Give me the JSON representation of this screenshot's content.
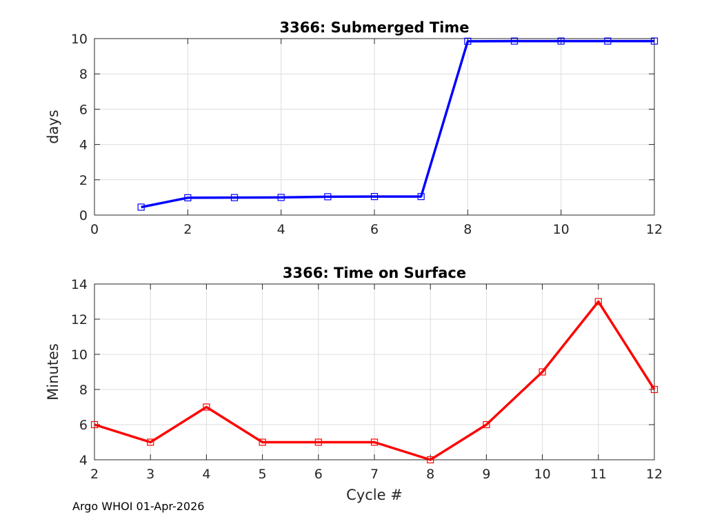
{
  "footer_text": "Argo WHOI 01-Apr-2026",
  "chart_data": [
    {
      "type": "line",
      "title": "3366: Submerged Time",
      "xlabel": "",
      "ylabel": "days",
      "xlim": [
        0,
        12
      ],
      "ylim": [
        0,
        10
      ],
      "xticks": [
        0,
        2,
        4,
        6,
        8,
        10,
        12
      ],
      "yticks": [
        0,
        2,
        4,
        6,
        8,
        10
      ],
      "grid": true,
      "marker": "square",
      "color": "#0000ff",
      "x": [
        1,
        2,
        3,
        4,
        5,
        6,
        7,
        8,
        9,
        10,
        11,
        12
      ],
      "y": [
        0.45,
        0.98,
        0.99,
        1.0,
        1.04,
        1.05,
        1.05,
        9.85,
        9.86,
        9.86,
        9.86,
        9.86
      ]
    },
    {
      "type": "line",
      "title": "3366: Time on Surface",
      "xlabel": "Cycle #",
      "ylabel": "Minutes",
      "xlim": [
        2,
        12
      ],
      "ylim": [
        4,
        14
      ],
      "xticks": [
        2,
        3,
        4,
        5,
        6,
        7,
        8,
        9,
        10,
        11,
        12
      ],
      "yticks": [
        4,
        6,
        8,
        10,
        12,
        14
      ],
      "grid": true,
      "marker": "square",
      "color": "#ff0000",
      "x": [
        2,
        3,
        4,
        5,
        6,
        7,
        8,
        9,
        10,
        11,
        12
      ],
      "y": [
        6,
        5,
        7,
        5,
        5,
        5,
        4,
        6,
        9,
        13,
        8
      ]
    }
  ]
}
